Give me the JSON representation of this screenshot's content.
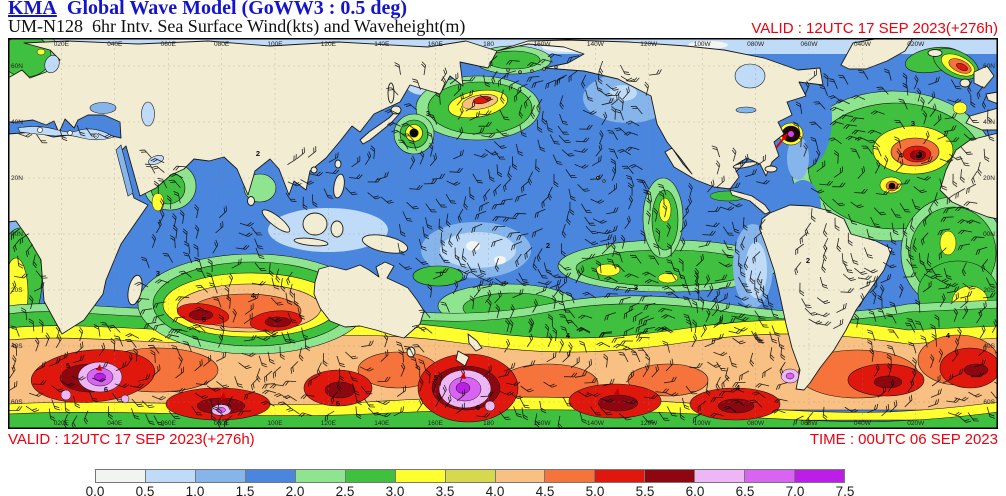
{
  "header": {
    "title_org": "KMA",
    "title_rest": "Global Wave Model (GoWW3 : 0.5 deg)",
    "subtitle": "UM-N128  6hr Intv. Sea Surface Wind(kts) and Waveheight(m)",
    "valid_label": "VALID : 12UTC 17 SEP 2023(+276h)"
  },
  "footer": {
    "valid_label": "VALID : 12UTC 17 SEP 2023(+276h)",
    "time_label": "TIME : 00UTC 06 SEP 2023"
  },
  "map": {
    "lat_labels": [
      "60N",
      "40N",
      "20N",
      "00N",
      "20S",
      "40S",
      "60S"
    ],
    "lon_labels": [
      "020E",
      "040E",
      "060E",
      "080E",
      "100E",
      "120E",
      "140E",
      "160E",
      "180",
      "160W",
      "140W",
      "120W",
      "100W",
      "080W",
      "060W",
      "040W",
      "020W"
    ]
  },
  "colorbar": {
    "tick_labels": [
      "0.0",
      "0.5",
      "1.0",
      "1.5",
      "2.0",
      "2.5",
      "3.0",
      "3.5",
      "4.0",
      "4.5",
      "5.0",
      "5.5",
      "6.0",
      "6.5",
      "7.0",
      "7.5"
    ],
    "segment_colors": [
      "#f2f4f1",
      "#bfdbf7",
      "#86b5ec",
      "#4a86dd",
      "#8fe48f",
      "#3fc13f",
      "#ffff2f",
      "#d8d84f",
      "#f8c083",
      "#f6743b",
      "#e0170d",
      "#8e0610",
      "#efb6f5",
      "#d964f2",
      "#bc1ee8"
    ]
  },
  "chart_data": {
    "type": "heatmap",
    "title": "KMA Global Wave Model (GoWW3 : 0.5 deg)",
    "model": "UM-N128",
    "interval": "6hr Intv.",
    "variables": "Sea Surface Wind(kts) and Waveheight(m)",
    "units": {
      "wind": "kts",
      "waveheight": "m"
    },
    "valid_time": "12UTC 17 SEP 2023 (+276h)",
    "base_time": "00UTC 06 SEP 2023",
    "colorbar_levels_m": [
      0.0,
      0.5,
      1.0,
      1.5,
      2.0,
      2.5,
      3.0,
      3.5,
      4.0,
      4.5,
      5.0,
      5.5,
      6.0,
      6.5,
      7.0,
      7.5
    ],
    "colorbar_colors": [
      "#f2f4f1",
      "#bfdbf7",
      "#86b5ec",
      "#4a86dd",
      "#8fe48f",
      "#3fc13f",
      "#ffff2f",
      "#d8d84f",
      "#f8c083",
      "#f6743b",
      "#e0170d",
      "#8e0610",
      "#efb6f5",
      "#d964f2",
      "#bc1ee8"
    ],
    "lon_ticks": [
      "020E",
      "040E",
      "060E",
      "080E",
      "100E",
      "120E",
      "140E",
      "160E",
      "180",
      "160W",
      "140W",
      "120W",
      "100W",
      "080W",
      "060W",
      "040W",
      "020W"
    ],
    "lat_ticks": [
      "60N",
      "40N",
      "20N",
      "00N",
      "20S",
      "40S",
      "60S"
    ],
    "grid": true,
    "contour_label_values": [
      2,
      3,
      4,
      5,
      6
    ],
    "features": [
      {
        "region": "South Atlantic storm (~52S 33E)",
        "max_waveheight_m": 7.5
      },
      {
        "region": "South of New Zealand storm (~56S 168E)",
        "max_waveheight_m": 7.5
      },
      {
        "region": "Southern Indian Ocean storm (~57S 78E)",
        "max_waveheight_m": 7.0
      },
      {
        "region": "South Pacific storm (~51S 73W)",
        "max_waveheight_m": 7.0
      },
      {
        "region": "Indian Ocean trade-wind swell (~15S 70E)",
        "max_waveheight_m": 6.0
      },
      {
        "region": "North Atlantic hurricane (~36N 26W)",
        "max_waveheight_m": 6.0
      },
      {
        "region": "Hurricane off US east coast (~37N 73W)",
        "max_waveheight_m": 7.0
      },
      {
        "region": "NW Pacific typhoon south of Japan (~31N 149E)",
        "max_waveheight_m": 5.0
      },
      {
        "region": "Central North Pacific storm (~45N 172E)",
        "max_waveheight_m": 5.0
      },
      {
        "region": "Tropical West Pacific calm (~5N 160E)",
        "max_waveheight_m": 1.0
      }
    ]
  }
}
